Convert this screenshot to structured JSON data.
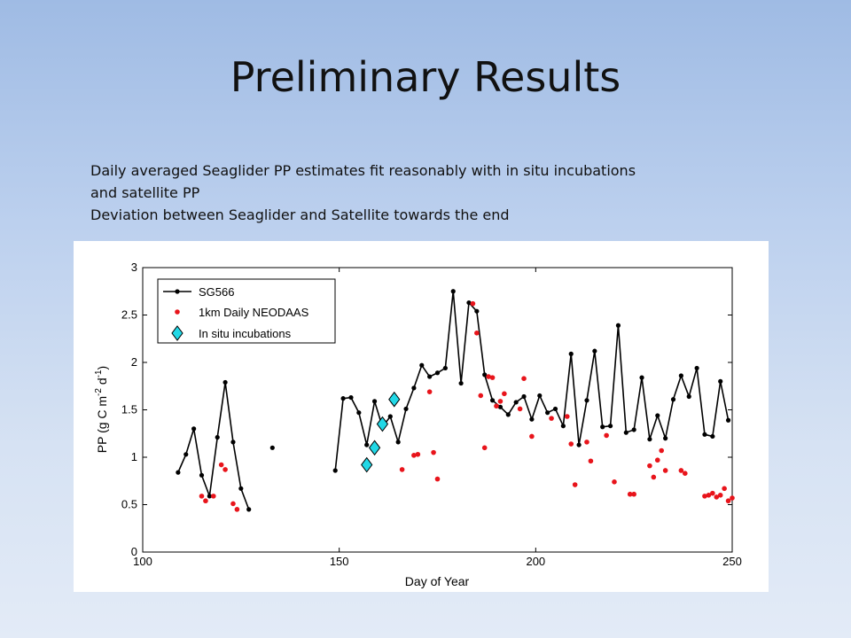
{
  "slide": {
    "title": "Preliminary Results",
    "bullets": [
      "Daily averaged Seaglider PP estimates fit reasonably with in situ incubations",
      "and satellite PP",
      "Deviation between Seaglider and Satellite towards the end"
    ]
  },
  "chart_data": {
    "type": "line",
    "xlabel": "Day of Year",
    "ylabel_parts": [
      "PP (g C m",
      "-2",
      " d",
      "-1",
      ")"
    ],
    "xlim": [
      100,
      250
    ],
    "ylim": [
      0,
      3
    ],
    "xticks": [
      "100",
      "150",
      "200",
      "250"
    ],
    "yticks": [
      "0",
      "0.5",
      "1",
      "1.5",
      "2",
      "2.5",
      "3"
    ],
    "legend": {
      "position": "top-left",
      "entries": [
        "SG566",
        "1km Daily NEODAAS",
        "In situ incubations"
      ]
    },
    "colors": {
      "sg566": "#000000",
      "neodaas": "#e8141b",
      "insitu_fill": "#22d8e6",
      "insitu_stroke": "#000000"
    },
    "series": [
      {
        "name": "SG566",
        "style": "line-dot",
        "segments": [
          [
            [
              109,
              0.84
            ],
            [
              111,
              1.03
            ],
            [
              113,
              1.3
            ],
            [
              115,
              0.81
            ],
            [
              117,
              0.59
            ],
            [
              119,
              1.21
            ],
            [
              121,
              1.79
            ],
            [
              123,
              1.16
            ],
            [
              125,
              0.67
            ],
            [
              127,
              0.45
            ]
          ],
          [
            [
              133,
              1.1
            ]
          ],
          [
            [
              149,
              0.86
            ],
            [
              151,
              1.62
            ],
            [
              153,
              1.63
            ],
            [
              155,
              1.47
            ],
            [
              157,
              1.13
            ],
            [
              159,
              1.59
            ],
            [
              161,
              1.32
            ],
            [
              163,
              1.43
            ],
            [
              165,
              1.16
            ],
            [
              167,
              1.51
            ],
            [
              169,
              1.73
            ],
            [
              171,
              1.97
            ],
            [
              173,
              1.85
            ],
            [
              175,
              1.89
            ],
            [
              177,
              1.94
            ],
            [
              179,
              2.75
            ],
            [
              181,
              1.78
            ],
            [
              183,
              2.63
            ],
            [
              185,
              2.54
            ],
            [
              187,
              1.87
            ],
            [
              189,
              1.6
            ],
            [
              191,
              1.53
            ],
            [
              193,
              1.45
            ],
            [
              195,
              1.58
            ],
            [
              197,
              1.64
            ],
            [
              199,
              1.4
            ],
            [
              201,
              1.65
            ],
            [
              203,
              1.47
            ],
            [
              205,
              1.51
            ],
            [
              207,
              1.33
            ],
            [
              209,
              2.09
            ],
            [
              211,
              1.13
            ],
            [
              213,
              1.6
            ],
            [
              215,
              2.12
            ],
            [
              217,
              1.32
            ],
            [
              219,
              1.33
            ],
            [
              221,
              2.39
            ],
            [
              223,
              1.26
            ],
            [
              225,
              1.29
            ],
            [
              227,
              1.84
            ],
            [
              229,
              1.19
            ],
            [
              231,
              1.44
            ],
            [
              233,
              1.2
            ],
            [
              235,
              1.61
            ],
            [
              237,
              1.86
            ],
            [
              239,
              1.64
            ],
            [
              241,
              1.94
            ],
            [
              243,
              1.24
            ],
            [
              245,
              1.22
            ],
            [
              247,
              1.8
            ],
            [
              249,
              1.39
            ]
          ]
        ]
      },
      {
        "name": "1km Daily NEODAAS",
        "style": "dots",
        "points": [
          [
            115,
            0.59
          ],
          [
            116,
            0.54
          ],
          [
            118,
            0.59
          ],
          [
            120,
            0.92
          ],
          [
            121,
            0.87
          ],
          [
            123,
            0.51
          ],
          [
            124,
            0.45
          ],
          [
            166,
            0.87
          ],
          [
            169,
            1.02
          ],
          [
            170,
            1.03
          ],
          [
            173,
            1.69
          ],
          [
            174,
            1.05
          ],
          [
            175,
            0.77
          ],
          [
            184,
            2.62
          ],
          [
            185,
            2.31
          ],
          [
            186,
            1.65
          ],
          [
            187,
            1.1
          ],
          [
            188,
            1.85
          ],
          [
            189,
            1.84
          ],
          [
            190,
            1.54
          ],
          [
            191,
            1.59
          ],
          [
            192,
            1.67
          ],
          [
            196,
            1.51
          ],
          [
            197,
            1.83
          ],
          [
            199,
            1.22
          ],
          [
            204,
            1.41
          ],
          [
            208,
            1.43
          ],
          [
            209,
            1.14
          ],
          [
            210,
            0.71
          ],
          [
            213,
            1.16
          ],
          [
            214,
            0.96
          ],
          [
            218,
            1.23
          ],
          [
            220,
            0.74
          ],
          [
            224,
            0.61
          ],
          [
            225,
            0.61
          ],
          [
            229,
            0.91
          ],
          [
            230,
            0.79
          ],
          [
            231,
            0.97
          ],
          [
            232,
            1.07
          ],
          [
            233,
            0.86
          ],
          [
            237,
            0.86
          ],
          [
            238,
            0.83
          ],
          [
            243,
            0.59
          ],
          [
            244,
            0.6
          ],
          [
            245,
            0.62
          ],
          [
            246,
            0.58
          ],
          [
            247,
            0.6
          ],
          [
            248,
            0.67
          ],
          [
            249,
            0.54
          ],
          [
            250,
            0.57
          ]
        ]
      },
      {
        "name": "In situ incubations",
        "style": "diamonds",
        "points": [
          [
            157,
            0.92
          ],
          [
            159,
            1.1
          ],
          [
            161,
            1.35
          ],
          [
            164,
            1.61
          ]
        ]
      }
    ]
  }
}
